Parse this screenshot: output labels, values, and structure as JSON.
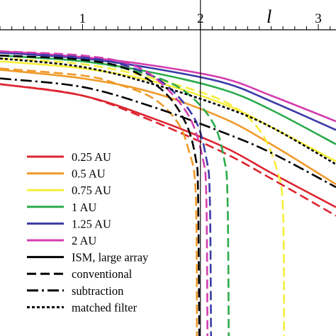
{
  "chart_data": {
    "type": "line",
    "title": "",
    "xlabel": "l",
    "ylabel": "",
    "xlim": [
      0.3,
      3.15
    ],
    "ylim": [
      -1.0,
      0.07
    ],
    "grid": false,
    "legend_position": "lower-left",
    "x_ticks": [
      {
        "value": 1,
        "label": "1"
      },
      {
        "value": 2,
        "label": "2"
      },
      {
        "value": 3,
        "label": "3"
      }
    ],
    "reference_line_x": 2,
    "colors": {
      "0.25 AU": "#dc2430",
      "0.5 AU": "#f09a2a",
      "0.75 AU": "#f7ee3a",
      "1 AU": "#2bab4a",
      "1.25 AU": "#3a3aa6",
      "2 AU": "#d43cae",
      "black": "#000000"
    },
    "legend": [
      {
        "label": "0.25 AU",
        "color": "#dc2430",
        "style": "solid"
      },
      {
        "label": "0.5 AU",
        "color": "#f09a2a",
        "style": "solid"
      },
      {
        "label": "0.75 AU",
        "color": "#f7ee3a",
        "style": "solid"
      },
      {
        "label": "1 AU",
        "color": "#2bab4a",
        "style": "solid"
      },
      {
        "label": "1.25 AU",
        "color": "#3a3aa6",
        "style": "solid"
      },
      {
        "label": "2 AU",
        "color": "#d43cae",
        "style": "solid"
      },
      {
        "label": "ISM, large array",
        "color": "#000000",
        "style": "solid"
      },
      {
        "label": "conventional",
        "color": "#000000",
        "style": "dashed"
      },
      {
        "label": "subtraction",
        "color": "#000000",
        "style": "dashdot"
      },
      {
        "label": "matched filter",
        "color": "#000000",
        "style": "dotted"
      }
    ],
    "series": [
      {
        "style": "solid",
        "color": "#dc2430",
        "points": [
          [
            0.3,
            -0.12
          ],
          [
            1.0,
            -0.16
          ],
          [
            1.6,
            -0.24
          ],
          [
            2.2,
            -0.34
          ],
          [
            2.6,
            -0.43
          ],
          [
            3.15,
            -0.55
          ]
        ]
      },
      {
        "style": "solid",
        "color": "#f09a2a",
        "points": [
          [
            0.3,
            -0.07
          ],
          [
            1.0,
            -0.1
          ],
          [
            1.6,
            -0.15
          ],
          [
            2.2,
            -0.24
          ],
          [
            2.6,
            -0.33
          ],
          [
            3.15,
            -0.47
          ]
        ]
      },
      {
        "style": "solid",
        "color": "#f7ee3a",
        "points": [
          [
            0.3,
            -0.04
          ],
          [
            1.0,
            -0.065
          ],
          [
            1.6,
            -0.11
          ],
          [
            2.2,
            -0.19
          ],
          [
            2.6,
            -0.27
          ],
          [
            3.15,
            -0.39
          ]
        ]
      },
      {
        "style": "solid",
        "color": "#2bab4a",
        "points": [
          [
            0.3,
            -0.02
          ],
          [
            1.0,
            -0.04
          ],
          [
            1.6,
            -0.08
          ],
          [
            2.2,
            -0.14
          ],
          [
            2.6,
            -0.21
          ],
          [
            3.15,
            -0.33
          ]
        ]
      },
      {
        "style": "solid",
        "color": "#3a3aa6",
        "points": [
          [
            0.3,
            -0.01
          ],
          [
            1.0,
            -0.03
          ],
          [
            1.6,
            -0.065
          ],
          [
            2.2,
            -0.115
          ],
          [
            2.6,
            -0.18
          ],
          [
            3.15,
            -0.28
          ]
        ]
      },
      {
        "style": "solid",
        "color": "#d43cae",
        "points": [
          [
            0.3,
            -0.005
          ],
          [
            1.0,
            -0.025
          ],
          [
            1.6,
            -0.055
          ],
          [
            2.2,
            -0.1
          ],
          [
            2.6,
            -0.16
          ],
          [
            3.15,
            -0.25
          ]
        ]
      },
      {
        "style": "dashed",
        "color": "#dc2430",
        "points": [
          [
            0.3,
            -0.12
          ],
          [
            1.0,
            -0.16
          ],
          [
            1.6,
            -0.25
          ],
          [
            2.2,
            -0.36
          ],
          [
            2.6,
            -0.45
          ],
          [
            3.15,
            -0.58
          ]
        ]
      },
      {
        "style": "dashed",
        "color": "#f09a2a",
        "points": [
          [
            0.3,
            -0.065
          ],
          [
            1.0,
            -0.09
          ],
          [
            1.3,
            -0.12
          ],
          [
            1.6,
            -0.17
          ],
          [
            1.8,
            -0.25
          ],
          [
            1.9,
            -0.35
          ],
          [
            1.96,
            -0.5
          ],
          [
            1.97,
            -1.0
          ]
        ]
      },
      {
        "style": "dashed",
        "color": "#f7ee3a",
        "points": [
          [
            0.3,
            -0.03
          ],
          [
            1.0,
            -0.05
          ],
          [
            1.6,
            -0.1
          ],
          [
            2.2,
            -0.18
          ],
          [
            2.5,
            -0.28
          ],
          [
            2.65,
            -0.42
          ],
          [
            2.7,
            -0.56
          ],
          [
            2.71,
            -1.0
          ]
        ]
      },
      {
        "style": "dashed",
        "color": "#2bab4a",
        "points": [
          [
            0.3,
            -0.02
          ],
          [
            1.0,
            -0.04
          ],
          [
            1.5,
            -0.08
          ],
          [
            1.85,
            -0.14
          ],
          [
            2.1,
            -0.25
          ],
          [
            2.2,
            -0.38
          ],
          [
            2.23,
            -0.52
          ],
          [
            2.24,
            -1.0
          ]
        ]
      },
      {
        "style": "dashed",
        "color": "#3a3aa6",
        "points": [
          [
            0.3,
            -0.01
          ],
          [
            1.0,
            -0.025
          ],
          [
            1.4,
            -0.06
          ],
          [
            1.7,
            -0.12
          ],
          [
            1.95,
            -0.24
          ],
          [
            2.05,
            -0.38
          ],
          [
            2.08,
            -0.52
          ],
          [
            2.09,
            -1.0
          ]
        ]
      },
      {
        "style": "dashed",
        "color": "#d43cae",
        "points": [
          [
            0.3,
            -0.005
          ],
          [
            1.0,
            -0.02
          ],
          [
            1.4,
            -0.05
          ],
          [
            1.65,
            -0.11
          ],
          [
            1.9,
            -0.23
          ],
          [
            2.02,
            -0.38
          ],
          [
            2.05,
            -0.52
          ],
          [
            2.06,
            -1.0
          ]
        ]
      },
      {
        "style": "dashed",
        "color": "#000000",
        "points": [
          [
            0.3,
            -0.02
          ],
          [
            1.0,
            -0.035
          ],
          [
            1.4,
            -0.07
          ],
          [
            1.7,
            -0.15
          ],
          [
            1.88,
            -0.26
          ],
          [
            1.96,
            -0.38
          ],
          [
            1.98,
            -0.5
          ],
          [
            1.99,
            -1.0
          ]
        ]
      },
      {
        "style": "dashdot",
        "color": "#000000",
        "points": [
          [
            0.3,
            -0.1
          ],
          [
            1.0,
            -0.13
          ],
          [
            1.6,
            -0.2
          ],
          [
            2.2,
            -0.29
          ],
          [
            2.6,
            -0.36
          ],
          [
            3.15,
            -0.48
          ]
        ]
      },
      {
        "style": "dotted",
        "color": "#000000",
        "points": [
          [
            0.3,
            -0.03
          ],
          [
            1.0,
            -0.06
          ],
          [
            1.6,
            -0.12
          ],
          [
            2.2,
            -0.2
          ],
          [
            2.6,
            -0.27
          ],
          [
            3.15,
            -0.4
          ]
        ]
      }
    ]
  }
}
